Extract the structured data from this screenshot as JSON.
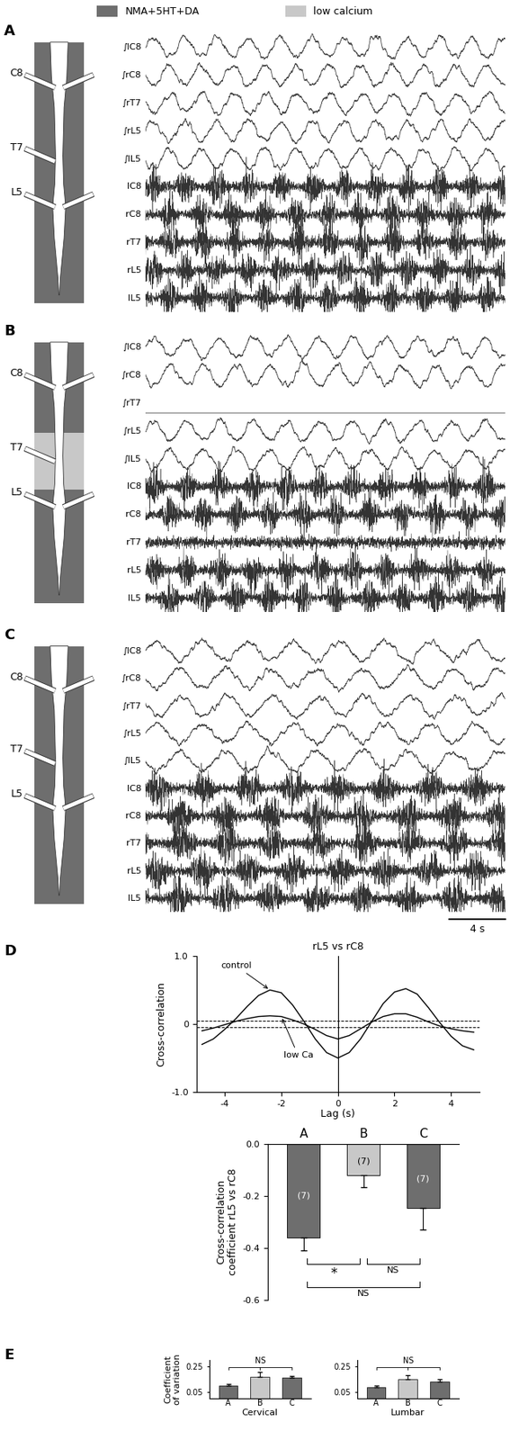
{
  "conditions": [
    {
      "name": "NMA+5HT+DA",
      "color": "#6e6e6e"
    },
    {
      "name": "low calcium",
      "color": "#c8c8c8"
    }
  ],
  "recordings": {
    "segments": [
      "C8",
      "T7",
      "L5"
    ],
    "integrated_labels": [
      "∫lC8",
      "∫rC8",
      "∫rT7",
      "∫rL5",
      "∫lL5"
    ],
    "raw_labels": [
      "lC8",
      "rC8",
      "rT7",
      "rL5",
      "lL5"
    ],
    "panels": [
      {
        "letter": "A"
      },
      {
        "letter": "B",
        "low_calcium_segment": "T7",
        "flat_traces": [
          "rT7"
        ]
      },
      {
        "letter": "C"
      }
    ],
    "scale_bar": {
      "label": "4 s",
      "value": 4
    }
  },
  "chart_data": [
    {
      "letter": "D",
      "type": "line",
      "title": "rL5 vs rC8",
      "x_label": "Lag (s)",
      "y_label": "Cross-correlation",
      "x": [
        -4.8,
        -4.4,
        -4.0,
        -3.6,
        -3.2,
        -2.8,
        -2.4,
        -2.0,
        -1.6,
        -1.2,
        -0.8,
        -0.4,
        0,
        0.4,
        0.8,
        1.2,
        1.6,
        2.0,
        2.4,
        2.8,
        3.2,
        3.6,
        4.0,
        4.4,
        4.8
      ],
      "series": [
        {
          "name": "control",
          "color": "#000000",
          "values": [
            -0.3,
            -0.22,
            -0.08,
            0.08,
            0.26,
            0.42,
            0.5,
            0.46,
            0.28,
            0.04,
            -0.22,
            -0.42,
            -0.5,
            -0.42,
            -0.22,
            0.04,
            0.3,
            0.47,
            0.52,
            0.44,
            0.24,
            0.02,
            -0.18,
            -0.32,
            -0.38
          ]
        },
        {
          "name": "low Ca",
          "color": "#000000",
          "values": [
            -0.1,
            -0.06,
            -0.01,
            0.04,
            0.08,
            0.11,
            0.12,
            0.11,
            0.06,
            0.0,
            -0.08,
            -0.17,
            -0.22,
            -0.17,
            -0.07,
            0.03,
            0.11,
            0.15,
            0.15,
            0.1,
            0.03,
            -0.03,
            -0.07,
            -0.1,
            -0.12
          ]
        }
      ],
      "xlim": [
        -5,
        5
      ],
      "xticks": [
        -4,
        -2,
        0,
        2,
        4
      ],
      "ylim": [
        -1.0,
        1.0
      ],
      "yticks": [
        -1.0,
        0,
        1.0
      ],
      "significance_levels": [
        -0.05,
        0.05
      ],
      "reference_lag": 0
    },
    {
      "type": "bar",
      "y_label": "Cross-correlation\ncoefficient rL5 vs rC8",
      "categories": [
        "A",
        "B",
        "C"
      ],
      "values": [
        -0.36,
        -0.12,
        -0.245
      ],
      "errors": [
        0.05,
        0.045,
        0.085
      ],
      "colors": [
        "#6e6e6e",
        "#c8c8c8",
        "#6e6e6e"
      ],
      "n_labels": [
        "(7)",
        "(7)",
        "(7)"
      ],
      "ylim": [
        -0.6,
        0.0
      ],
      "yticks": [
        0.0,
        -0.2,
        -0.4,
        -0.6
      ],
      "comparisons": [
        {
          "pair": [
            "A",
            "B"
          ],
          "label": "*"
        },
        {
          "pair": [
            "B",
            "C"
          ],
          "label": "NS"
        },
        {
          "pair": [
            "A",
            "C"
          ],
          "label": "NS"
        }
      ]
    },
    {
      "letter": "E",
      "type": "bar",
      "y_label": "Coefficient\nof variation",
      "x_label": "Cervical",
      "categories": [
        "A",
        "B",
        "C"
      ],
      "values": [
        0.1,
        0.17,
        0.16
      ],
      "errors": [
        0.012,
        0.035,
        0.015
      ],
      "colors": [
        "#6e6e6e",
        "#c8c8c8",
        "#6e6e6e"
      ],
      "ylim": [
        0,
        0.3
      ],
      "yticks": [
        0.05,
        0.25
      ],
      "comparisons": [
        {
          "pair": [
            "A",
            "C"
          ],
          "label": "NS"
        }
      ]
    },
    {
      "type": "bar",
      "x_label": "Lumbar",
      "categories": [
        "A",
        "B",
        "C"
      ],
      "values": [
        0.09,
        0.15,
        0.13
      ],
      "errors": [
        0.008,
        0.03,
        0.02
      ],
      "colors": [
        "#6e6e6e",
        "#c8c8c8",
        "#6e6e6e"
      ],
      "ylim": [
        0,
        0.3
      ],
      "yticks": [
        0.05,
        0.25
      ],
      "comparisons": [
        {
          "pair": [
            "A",
            "C"
          ],
          "label": "NS"
        }
      ]
    }
  ]
}
